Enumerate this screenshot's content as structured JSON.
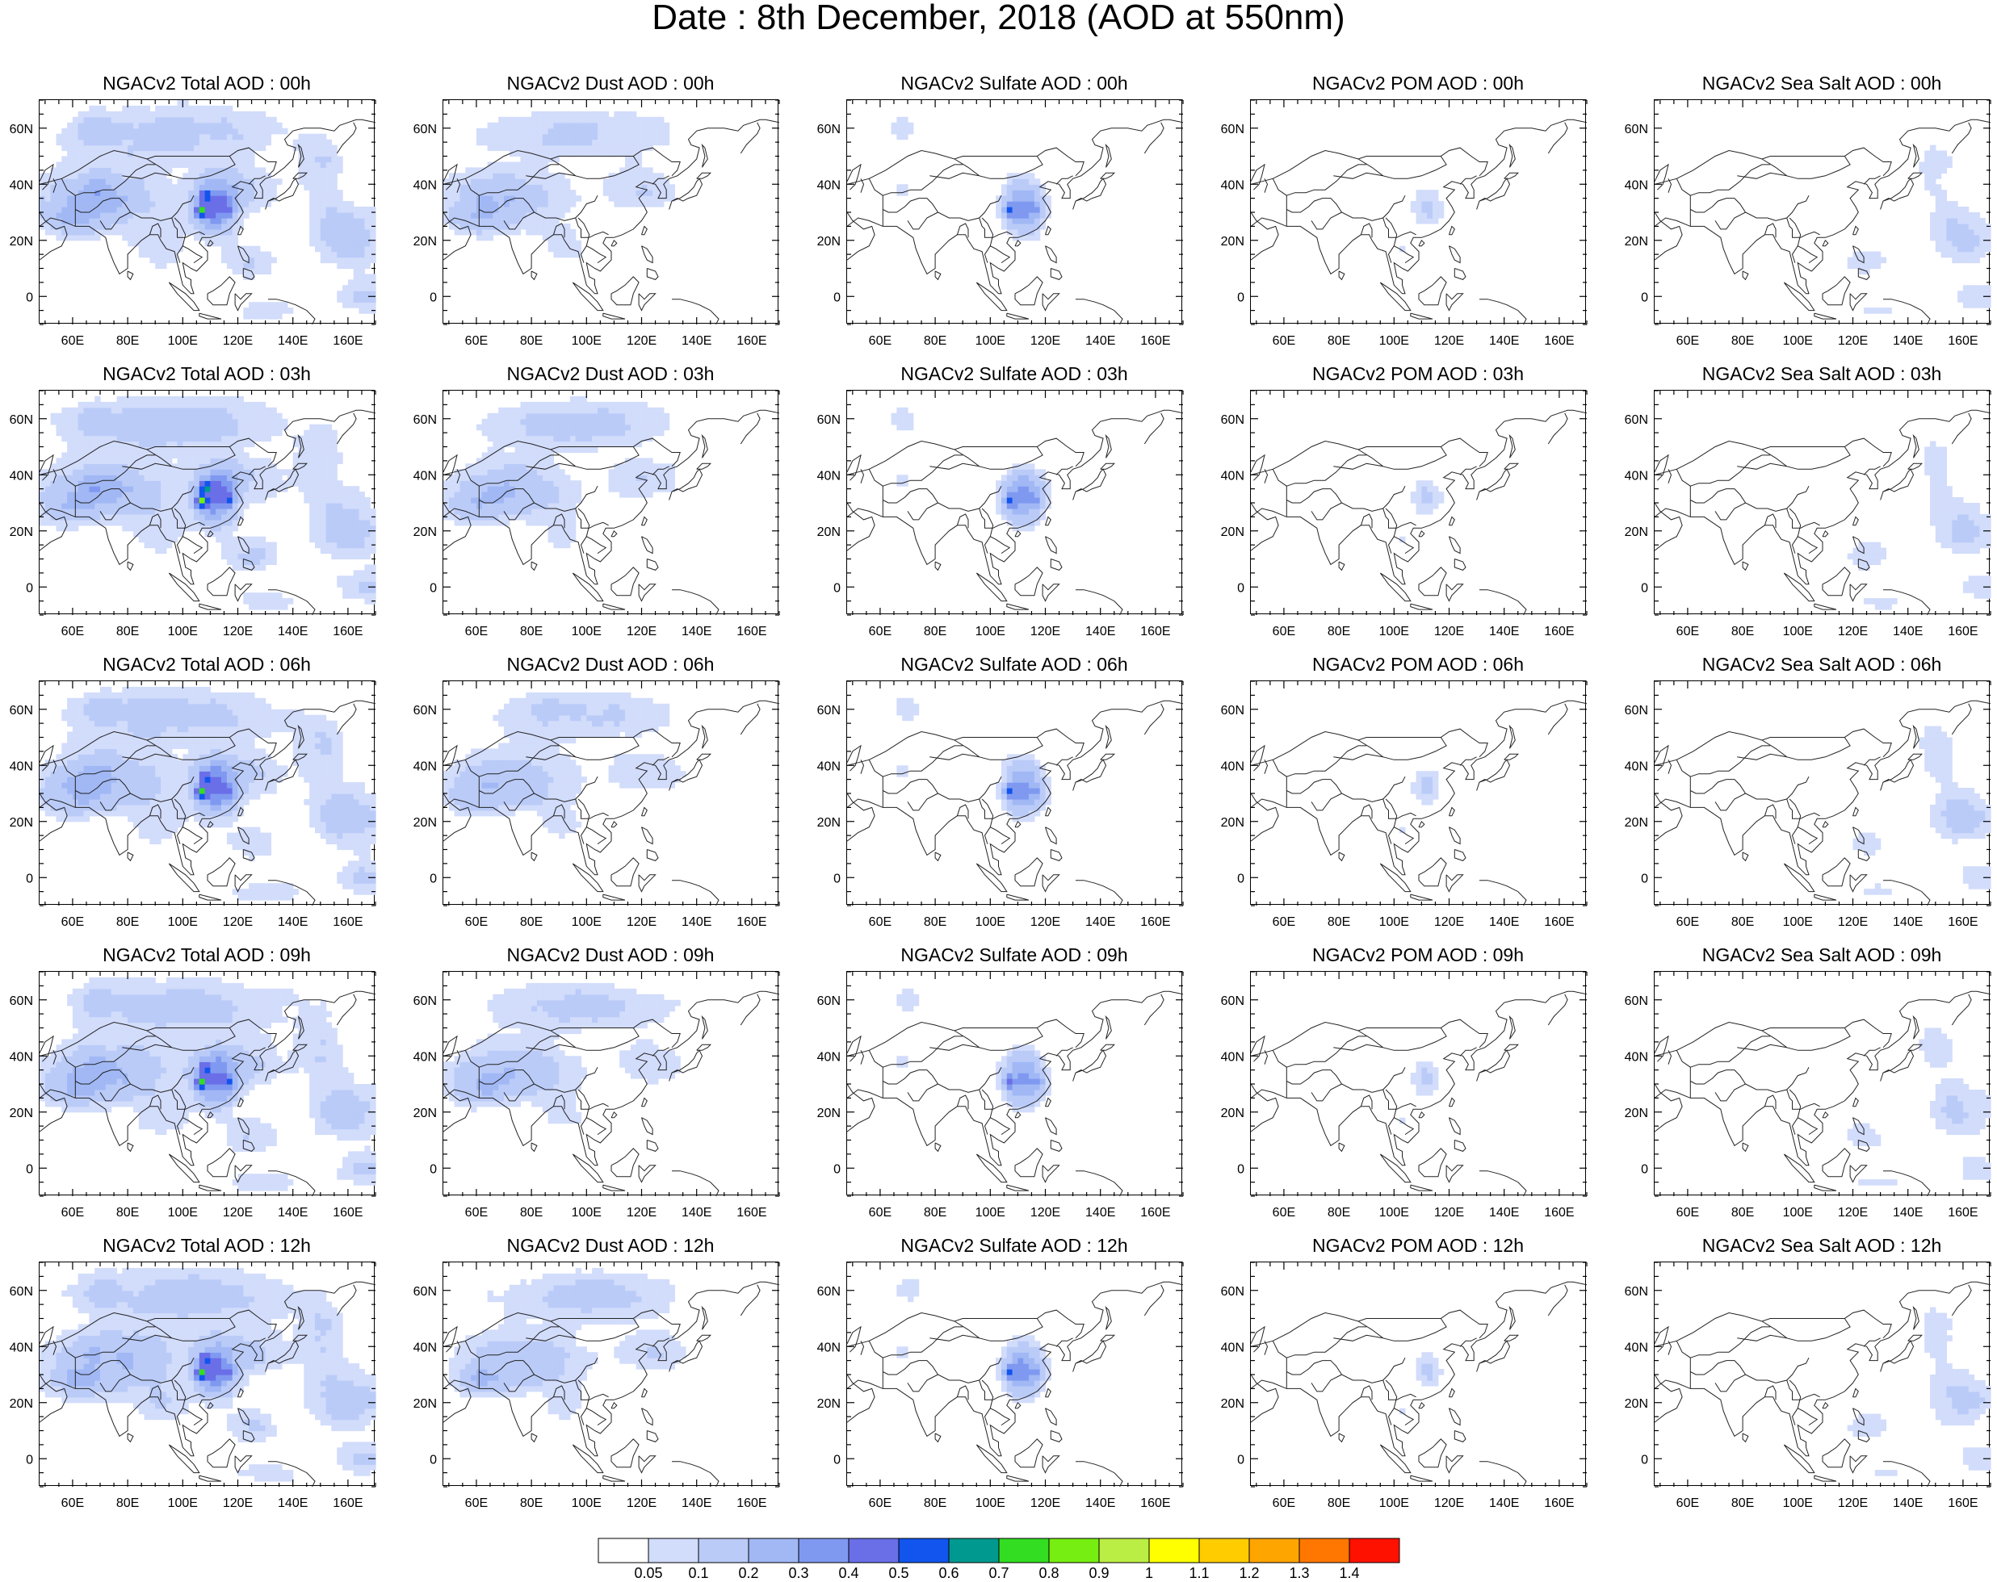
{
  "title": "Date : 8th December, 2018 (AOD at 550nm)",
  "map": {
    "lon_range": [
      48,
      170
    ],
    "lat_range": [
      -10,
      70
    ],
    "lon_ticks": [
      60,
      80,
      100,
      120,
      140,
      160
    ],
    "lon_tick_labels": [
      "60E",
      "80E",
      "100E",
      "120E",
      "140E",
      "160E"
    ],
    "lat_ticks": [
      0,
      20,
      40,
      60
    ],
    "lat_tick_labels": [
      "0",
      "20N",
      "40N",
      "60N"
    ]
  },
  "columns": [
    "total",
    "dust",
    "sulfate",
    "pom",
    "seasalt"
  ],
  "panels": [
    [
      "NGACv2 Total AOD : 00h",
      "NGACv2 Dust AOD : 00h",
      "NGACv2 Sulfate AOD : 00h",
      "NGACv2 POM AOD : 00h",
      "NGACv2 Sea Salt AOD : 00h"
    ],
    [
      "NGACv2 Total AOD : 03h",
      "NGACv2 Dust AOD : 03h",
      "NGACv2 Sulfate AOD : 03h",
      "NGACv2 POM AOD : 03h",
      "NGACv2 Sea Salt AOD : 03h"
    ],
    [
      "NGACv2 Total AOD : 06h",
      "NGACv2 Dust AOD : 06h",
      "NGACv2 Sulfate AOD : 06h",
      "NGACv2 POM AOD : 06h",
      "NGACv2 Sea Salt AOD : 06h"
    ],
    [
      "NGACv2 Total AOD : 09h",
      "NGACv2 Dust AOD : 09h",
      "NGACv2 Sulfate AOD : 09h",
      "NGACv2 POM AOD : 09h",
      "NGACv2 Sea Salt  AOD : 09h"
    ],
    [
      "NGACv2 Total AOD  : 12h",
      "NGACv2 Dust AOD : 12h",
      "NGACv2 Sulfate AOD : 12h",
      "NGACv2 POM  AOD : 12h",
      "NGACv2 Sea Salt  AOD : 12h"
    ]
  ],
  "colorbar": {
    "labels": [
      "0.05",
      "0.1",
      "0.2",
      "0.3",
      "0.4",
      "0.5",
      "0.6",
      "0.7",
      "0.8",
      "0.9",
      "1",
      "1.1",
      "1.2",
      "1.3",
      "1.4"
    ],
    "colors": [
      "#ffffff",
      "#d2dcfb",
      "#bacbf8",
      "#a1b8f5",
      "#8099f0",
      "#6a6fe8",
      "#1155ee",
      "#00998f",
      "#33dd22",
      "#77ee11",
      "#bbee44",
      "#ffff00",
      "#ffcc00",
      "#ffa500",
      "#ff7700",
      "#ff1100"
    ]
  }
}
